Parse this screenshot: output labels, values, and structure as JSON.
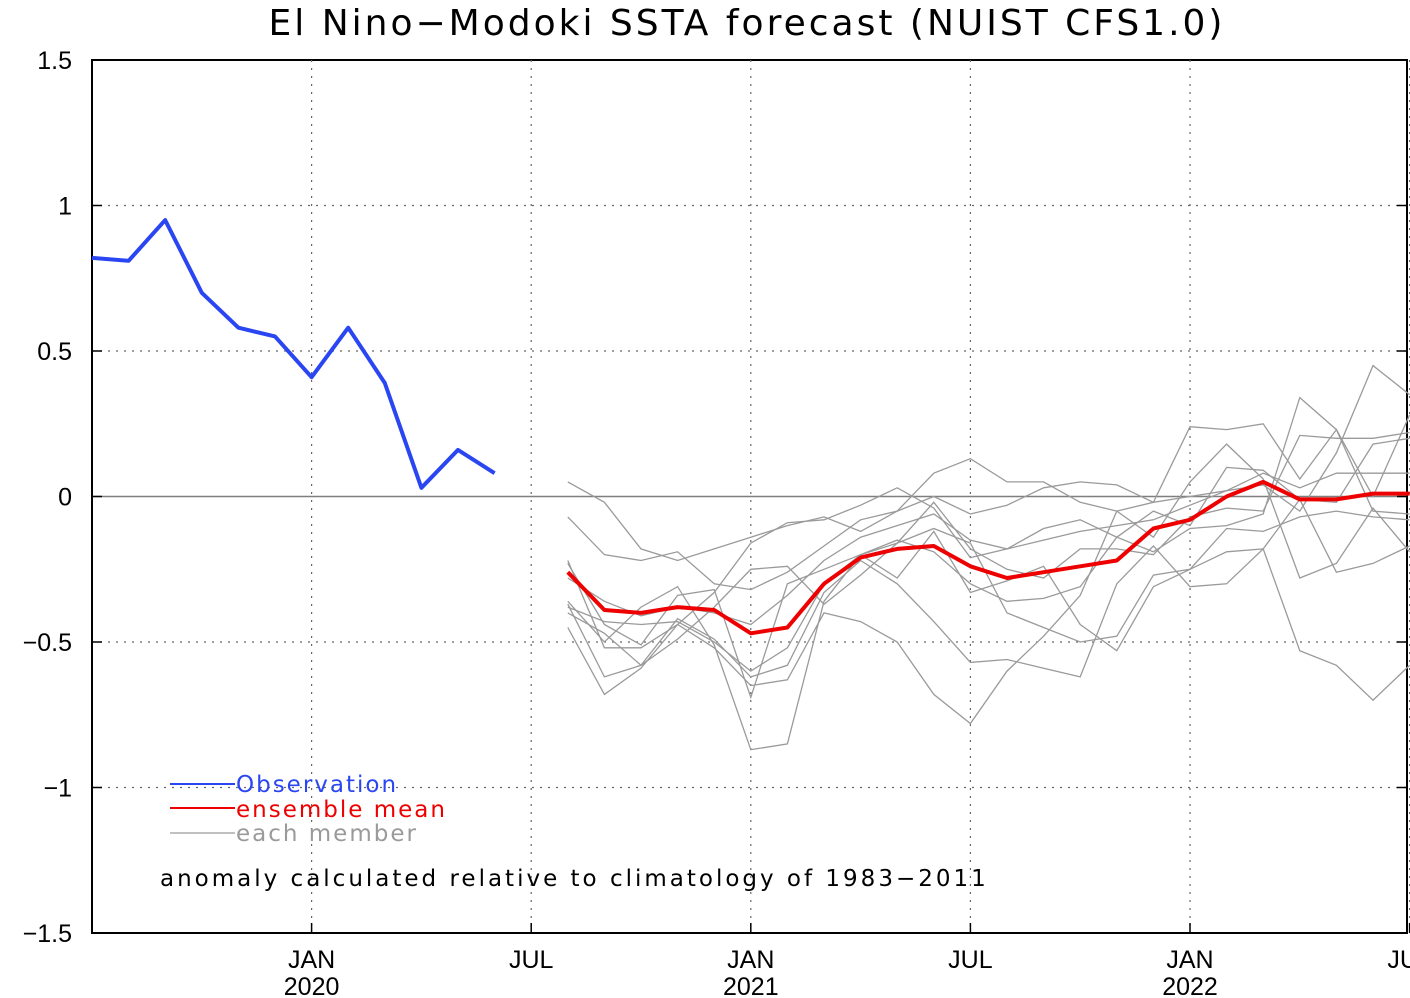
{
  "chart_data": {
    "type": "line",
    "title": "El Nino−Modoki SSTA forecast (NUIST CFS1.0)",
    "xlabel": "",
    "ylabel": "",
    "ylim": [
      -1.5,
      1.5
    ],
    "xlim": [
      "2019-07",
      "2022-07"
    ],
    "y_ticks": [
      "1.5",
      "1",
      "0.5",
      "0",
      "−0.5",
      "−1",
      "−1.5"
    ],
    "x_ticks": [
      {
        "month": "2020-01",
        "label": "JAN",
        "year": "2020"
      },
      {
        "month": "2020-07",
        "label": "JUL",
        "year": ""
      },
      {
        "month": "2021-01",
        "label": "JAN",
        "year": "2021"
      },
      {
        "month": "2021-07",
        "label": "JUL",
        "year": ""
      },
      {
        "month": "2022-01",
        "label": "JAN",
        "year": "2022"
      },
      {
        "month": "2022-07",
        "label": "JUL",
        "year": ""
      }
    ],
    "grid": true,
    "legend_position": "bottom-left",
    "annotation": "anomaly calculated relative to climatology of 1983−2011",
    "colors": {
      "observation": "#2a46f2",
      "mean": "#ee0000",
      "member": "#9a9a9a",
      "zero": "#7f7f7f",
      "grid": "#666666"
    },
    "series": [
      {
        "name": "Observation",
        "role": "observation",
        "x": [
          "2019-07",
          "2019-08",
          "2019-09",
          "2019-10",
          "2019-11",
          "2019-12",
          "2020-01",
          "2020-02",
          "2020-03",
          "2020-04",
          "2020-05",
          "2020-06",
          "2020-07"
        ],
        "values": [
          0.82,
          0.81,
          0.95,
          0.7,
          0.58,
          0.55,
          0.41,
          0.58,
          0.39,
          0.03,
          0.16,
          0.08,
          null
        ]
      },
      {
        "name": "ensemble mean",
        "role": "mean",
        "x": [
          "2020-08",
          "2020-09",
          "2020-10",
          "2020-11",
          "2020-12",
          "2021-01",
          "2021-02",
          "2021-03",
          "2021-04",
          "2021-05",
          "2021-06",
          "2021-07",
          "2021-08",
          "2021-09",
          "2021-10",
          "2021-11",
          "2021-12",
          "2022-01",
          "2022-02",
          "2022-03",
          "2022-04",
          "2022-05",
          "2022-06",
          "2022-07"
        ],
        "values": [
          -0.26,
          -0.39,
          -0.4,
          -0.38,
          -0.39,
          -0.47,
          -0.45,
          -0.3,
          -0.21,
          -0.18,
          -0.17,
          -0.24,
          -0.28,
          -0.26,
          -0.24,
          -0.22,
          -0.11,
          -0.08,
          0.0,
          0.05,
          -0.01,
          -0.01,
          0.01,
          0.01
        ]
      },
      {
        "name": "each member",
        "role": "member",
        "x": [
          "2020-08",
          "2020-09",
          "2020-10",
          "2020-11",
          "2020-12",
          "2021-01",
          "2021-02",
          "2021-03",
          "2021-04",
          "2021-05",
          "2021-06",
          "2021-07",
          "2021-08",
          "2021-09",
          "2021-10",
          "2021-11",
          "2021-12",
          "2022-01",
          "2022-02",
          "2022-03",
          "2022-04",
          "2022-05",
          "2022-06",
          "2022-07"
        ],
        "members": [
          [
            0.05,
            -0.02,
            -0.18,
            -0.22,
            -0.18,
            -0.14,
            -0.1,
            -0.07,
            -0.12,
            -0.05,
            0.0,
            -0.06,
            -0.03,
            0.03,
            0.05,
            0.04,
            -0.02,
            0.0,
            0.02,
            0.04,
            -0.05,
            0.15,
            0.45,
            0.35
          ],
          [
            -0.07,
            -0.2,
            -0.22,
            -0.19,
            -0.3,
            -0.32,
            -0.26,
            -0.17,
            -0.08,
            -0.05,
            0.08,
            0.13,
            0.05,
            0.05,
            -0.02,
            -0.05,
            -0.02,
            0.24,
            0.23,
            0.25,
            0.06,
            0.23,
            -0.05,
            -0.06
          ],
          [
            -0.22,
            -0.52,
            -0.52,
            -0.44,
            -0.33,
            -0.16,
            -0.09,
            -0.08,
            -0.03,
            0.03,
            -0.04,
            -0.21,
            -0.18,
            -0.11,
            -0.08,
            -0.14,
            -0.05,
            -0.1,
            0.1,
            0.09,
            -0.01,
            -0.02,
            0.18,
            0.2
          ],
          [
            -0.38,
            -0.43,
            -0.44,
            -0.43,
            -0.5,
            -0.6,
            -0.52,
            -0.3,
            -0.2,
            -0.15,
            -0.19,
            -0.3,
            -0.36,
            -0.35,
            -0.31,
            -0.14,
            -0.19,
            -0.11,
            -0.1,
            -0.06,
            0.34,
            0.23,
            0.0,
            0.28
          ],
          [
            -0.4,
            -0.47,
            -0.58,
            -0.49,
            -0.38,
            -0.25,
            -0.24,
            -0.37,
            -0.27,
            -0.16,
            -0.02,
            -0.18,
            -0.25,
            -0.28,
            -0.18,
            -0.18,
            -0.2,
            -0.07,
            -0.04,
            -0.05,
            0.21,
            0.2,
            0.2,
            0.22
          ],
          [
            -0.45,
            -0.68,
            -0.59,
            -0.44,
            -0.52,
            -0.65,
            -0.63,
            -0.4,
            -0.43,
            -0.5,
            -0.68,
            -0.78,
            -0.6,
            -0.48,
            -0.34,
            -0.05,
            -0.14,
            0.05,
            0.18,
            0.06,
            -0.28,
            -0.23,
            -0.04,
            -0.19
          ],
          [
            -0.37,
            -0.62,
            -0.58,
            -0.42,
            -0.49,
            -0.62,
            -0.58,
            -0.33,
            -0.22,
            -0.3,
            -0.43,
            -0.57,
            -0.56,
            -0.59,
            -0.62,
            -0.3,
            -0.17,
            -0.31,
            -0.3,
            -0.18,
            -0.53,
            -0.58,
            -0.7,
            -0.58
          ],
          [
            -0.23,
            -0.44,
            -0.51,
            -0.34,
            -0.32,
            -0.69,
            -0.3,
            -0.25,
            -0.2,
            -0.28,
            -0.12,
            -0.33,
            -0.29,
            -0.24,
            -0.44,
            -0.53,
            -0.31,
            -0.25,
            -0.11,
            -0.12,
            -0.07,
            -0.05,
            -0.07,
            -0.08
          ],
          [
            -0.36,
            -0.5,
            -0.38,
            -0.31,
            -0.51,
            -0.87,
            -0.85,
            -0.36,
            -0.2,
            -0.16,
            -0.11,
            -0.16,
            -0.4,
            -0.45,
            -0.5,
            -0.48,
            -0.27,
            -0.25,
            -0.19,
            -0.18,
            -0.01,
            -0.26,
            -0.23,
            -0.17
          ],
          [
            -0.28,
            -0.36,
            -0.41,
            -0.38,
            -0.4,
            -0.44,
            -0.34,
            -0.22,
            -0.14,
            -0.1,
            -0.06,
            -0.15,
            -0.18,
            -0.15,
            -0.12,
            -0.1,
            -0.08,
            -0.03,
            0.02,
            0.08,
            0.03,
            0.08,
            0.08,
            0.08
          ]
        ]
      }
    ]
  }
}
